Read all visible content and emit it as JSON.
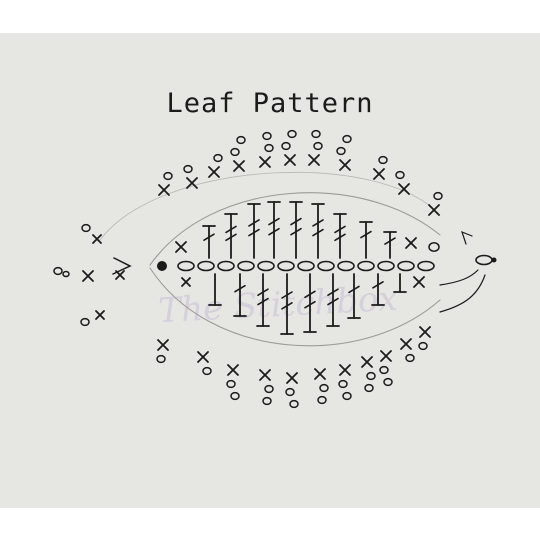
{
  "title": "Leaf Pattern",
  "watermark": "The Stitchbox",
  "colors": {
    "background": "#ffffff",
    "paper": "#e6e6e2",
    "ink": "#1b1b1b",
    "pencil": "#9a9a98",
    "watermark": "#c8bed7"
  },
  "symbols": [
    "sc-x",
    "chain-oval",
    "dc-post",
    "hdc-post",
    "picot-loop",
    "slip-dot",
    "arrow"
  ]
}
